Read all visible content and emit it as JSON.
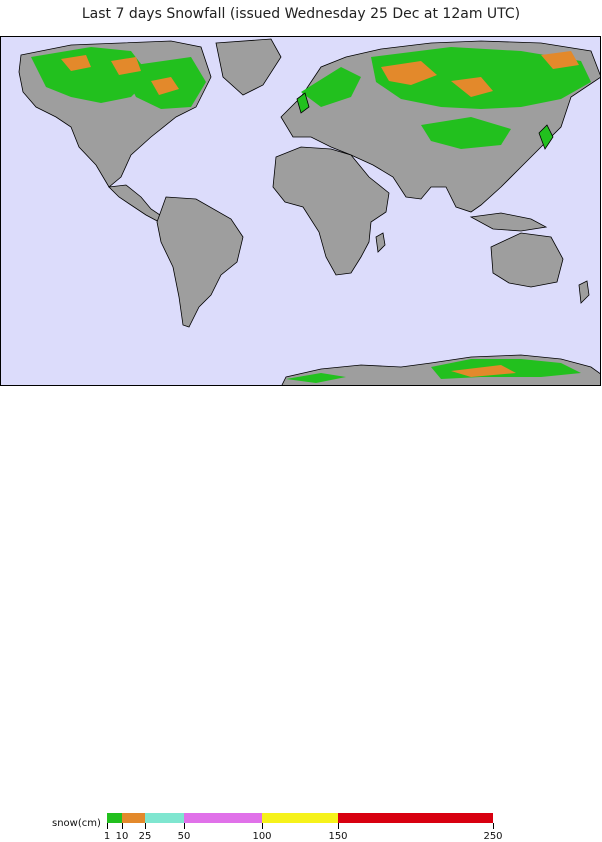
{
  "title": "Last 7 days Snowfall (issued Wednesday 25 Dec at 12am UTC)",
  "legend": {
    "unit_label": "snow(cm)",
    "bins": [
      {
        "from": 1,
        "to": 10,
        "color": "#22c01e"
      },
      {
        "from": 10,
        "to": 25,
        "color": "#e3892b"
      },
      {
        "from": 25,
        "to": 50,
        "color": "#7fe6d0"
      },
      {
        "from": 50,
        "to": 100,
        "color": "#e071e9"
      },
      {
        "from": 100,
        "to": 150,
        "color": "#f6f21b"
      },
      {
        "from": 150,
        "to": 250,
        "color": "#d80010"
      }
    ],
    "ticks": [
      "1",
      "10",
      "25",
      "50",
      "100",
      "150",
      "250"
    ]
  },
  "map": {
    "ocean_color": "#dcdcfb",
    "land_color": "#9e9e9e",
    "coast_color": "#000000"
  }
}
